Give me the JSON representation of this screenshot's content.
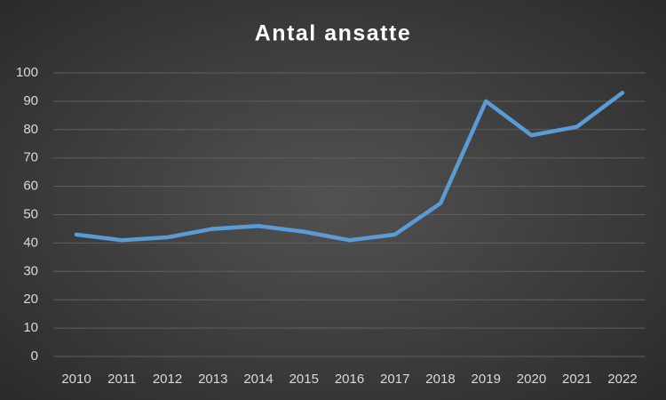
{
  "chart_data": {
    "type": "line",
    "title": "Antal ansatte",
    "categories": [
      "2010",
      "2011",
      "2012",
      "2013",
      "2014",
      "2015",
      "2016",
      "2017",
      "2018",
      "2019",
      "2020",
      "2021",
      "2022"
    ],
    "values": [
      43,
      41,
      42,
      45,
      46,
      44,
      41,
      43,
      54,
      90,
      78,
      81,
      93
    ],
    "color": "#5b9bd5",
    "ylim": [
      0,
      100
    ],
    "yticks": [
      0,
      10,
      20,
      30,
      40,
      50,
      60,
      70,
      80,
      90,
      100
    ],
    "grid": true
  }
}
